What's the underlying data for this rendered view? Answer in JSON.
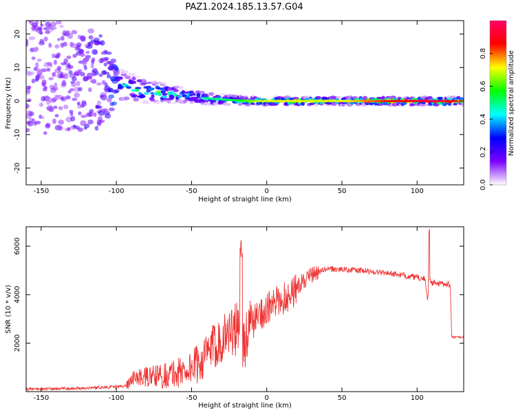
{
  "figure": {
    "title": "PAZ1.2024.185.13.57.G04"
  },
  "chart_data": [
    {
      "type": "heatmap",
      "xlabel": "Height of straight line (km)",
      "ylabel": "Frequency (Hz)",
      "xlim": [
        -160,
        131
      ],
      "ylim": [
        -25,
        24
      ],
      "xticks": [
        -150,
        -100,
        -50,
        0,
        50,
        100
      ],
      "yticks": [
        -20,
        -10,
        0,
        10,
        20
      ],
      "grid": false,
      "colorbar": {
        "label": "Normalized spectral amplitude",
        "range": [
          0,
          1
        ],
        "ticks": [
          0.0,
          0.2,
          0.4,
          0.6,
          0.8
        ],
        "tick_labels": [
          "0.0",
          "0.2",
          "0.4",
          "0.6",
          "0.8"
        ],
        "colormap": [
          "#ffffff",
          "#7b00ff",
          "#0000ff",
          "#00ffff",
          "#00ff00",
          "#ffff00",
          "#ff0000",
          "#ff0066"
        ]
      },
      "ridge": {
        "x": [
          -150,
          -130,
          -110,
          -100,
          -90,
          -80,
          -70,
          -60,
          -50,
          -40,
          -30,
          -20,
          -10,
          0,
          20,
          50,
          80,
          100,
          120,
          131
        ],
        "peak_freq": [
          8,
          7,
          6,
          5,
          4,
          3,
          2.5,
          2,
          1.5,
          0.8,
          0.5,
          0.2,
          0,
          0,
          0,
          0,
          0,
          0,
          0,
          0
        ],
        "spread": [
          18,
          16,
          14,
          5,
          4,
          3.5,
          3,
          2.5,
          2,
          1.8,
          1.6,
          1.4,
          1.3,
          1.2,
          1.2,
          1.2,
          1.2,
          1.2,
          1.2,
          1.2
        ],
        "amplitude": [
          0.15,
          0.18,
          0.2,
          0.3,
          0.35,
          0.4,
          0.4,
          0.35,
          0.35,
          0.35,
          0.35,
          0.4,
          0.5,
          0.55,
          0.55,
          0.55,
          0.7,
          0.75,
          0.8,
          0.6
        ]
      }
    },
    {
      "type": "line",
      "xlabel": "Height of straight line (km)",
      "ylabel": "SNR (10 * v/v)",
      "xlim": [
        -160,
        131
      ],
      "ylim": [
        0,
        6800
      ],
      "xticks": [
        -150,
        -100,
        -50,
        0,
        50,
        100
      ],
      "yticks": [
        2000,
        4000,
        6000
      ],
      "grid": false,
      "series": [
        {
          "color": "#ee3333",
          "x": [
            -160,
            -140,
            -120,
            -100,
            -93,
            -90,
            -80,
            -70,
            -60,
            -50,
            -45,
            -40,
            -35,
            -30,
            -25,
            -20,
            -17,
            -15,
            -10,
            -5,
            0,
            5,
            10,
            15,
            20,
            25,
            30,
            35,
            40,
            50,
            60,
            70,
            80,
            90,
            100,
            105,
            107,
            108,
            110,
            115,
            120,
            122,
            123,
            125,
            131
          ],
          "y": [
            100,
            120,
            150,
            200,
            250,
            550,
            600,
            650,
            750,
            1000,
            1200,
            1500,
            1900,
            2200,
            2500,
            2600,
            1800,
            2100,
            2800,
            3200,
            3400,
            3600,
            3800,
            4000,
            4300,
            4600,
            4800,
            4950,
            5050,
            5050,
            5000,
            4950,
            4900,
            4800,
            4700,
            4650,
            3800,
            4700,
            4500,
            4450,
            4450,
            4400,
            2250,
            2250,
            2250
          ]
        }
      ],
      "annotations": [
        {
          "x": -17,
          "y": 6300,
          "text": ""
        },
        {
          "x": 108,
          "y": 6800,
          "text": ""
        }
      ]
    }
  ]
}
